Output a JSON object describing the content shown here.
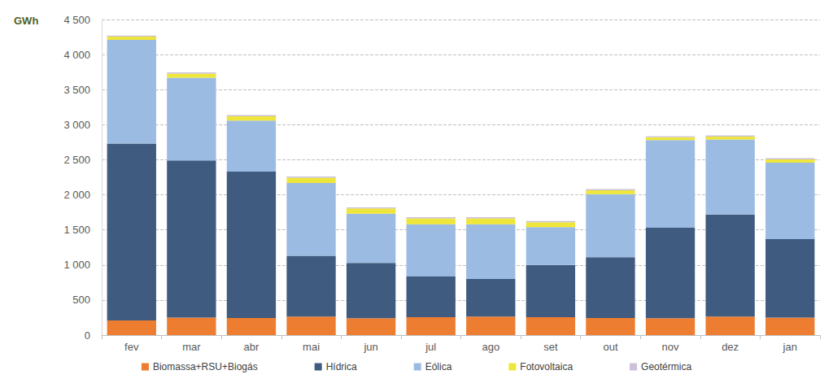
{
  "chart_data": {
    "type": "bar",
    "stacked": true,
    "grid": true,
    "legend": "bottom",
    "ylabel": "GWh",
    "categories": [
      "fev",
      "mar",
      "abr",
      "mai",
      "jun",
      "jul",
      "ago",
      "set",
      "out",
      "nov",
      "dez",
      "jan"
    ],
    "ylim": [
      0,
      4500
    ],
    "yticks": [
      0,
      500,
      {
        "value": 1000,
        "label": "1 000"
      },
      {
        "value": 1500,
        "label": "1 500"
      },
      {
        "value": 2000,
        "label": "2 000"
      },
      {
        "value": 2500,
        "label": "2 500"
      },
      {
        "value": 3000,
        "label": "3 000"
      },
      {
        "value": 3500,
        "label": "3 500"
      },
      {
        "value": 4000,
        "label": "4 000"
      },
      {
        "value": 4500,
        "label": "4 500"
      }
    ],
    "series": [
      {
        "name": "Biomassa+RSU+Biogás",
        "color": "#ED7D31",
        "values": [
          210,
          250,
          245,
          265,
          240,
          255,
          265,
          255,
          245,
          240,
          265,
          250
        ]
      },
      {
        "name": "Hídrica",
        "color": "#3F5B7F",
        "values": [
          2520,
          2240,
          2085,
          865,
          790,
          585,
          535,
          745,
          865,
          1290,
          1455,
          1120
        ]
      },
      {
        "name": "Eólica",
        "color": "#9BBBE3",
        "values": [
          1480,
          1180,
          730,
          1040,
          700,
          740,
          780,
          540,
          900,
          1250,
          1070,
          1090
        ]
      },
      {
        "name": "Fotovoltaica",
        "color": "#EEE63A",
        "values": [
          45,
          60,
          60,
          75,
          75,
          85,
          85,
          70,
          55,
          40,
          40,
          45
        ]
      },
      {
        "name": "Geotérmica",
        "color": "#CCC0DA",
        "values": [
          17,
          17,
          17,
          17,
          17,
          17,
          17,
          17,
          17,
          17,
          17,
          17
        ]
      }
    ]
  }
}
